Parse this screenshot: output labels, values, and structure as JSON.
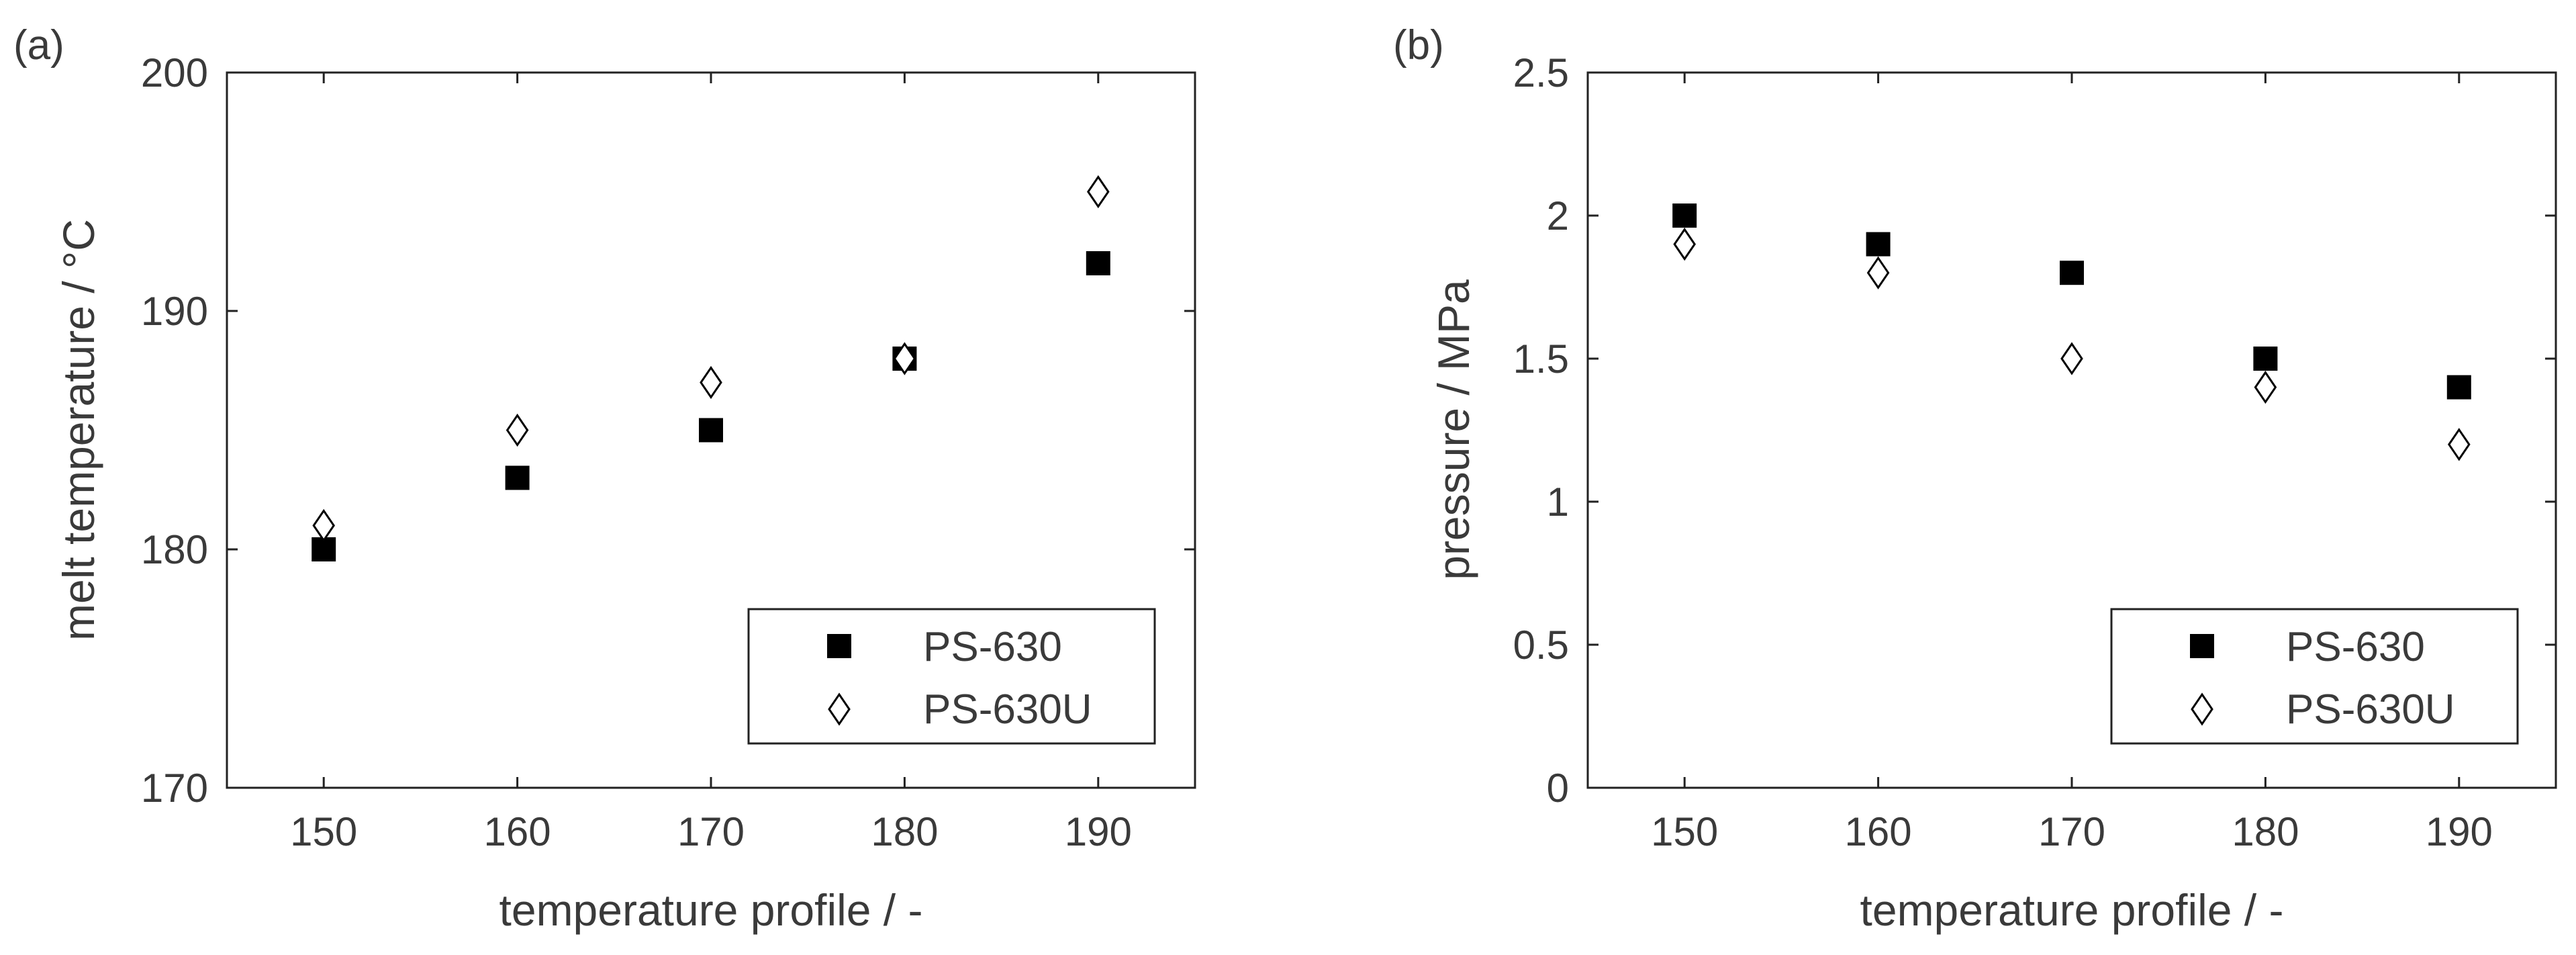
{
  "chart_data": [
    {
      "type": "scatter",
      "panel_label": "(a)",
      "xlabel": "temperature profile / -",
      "ylabel": "melt temperature / °C",
      "xlim": [
        145,
        195
      ],
      "ylim": [
        170,
        200
      ],
      "x_ticks": [
        150,
        160,
        170,
        180,
        190
      ],
      "x_tick_labels": [
        "150",
        "160",
        "170",
        "180",
        "190"
      ],
      "y_ticks": [
        170,
        180,
        190,
        200
      ],
      "y_tick_labels": [
        "170",
        "180",
        "190",
        "200"
      ],
      "grid": false,
      "legend_placement": "bottom-right",
      "series": [
        {
          "name": "PS-630",
          "marker": "filled-square",
          "color": "#000000",
          "x": [
            150,
            160,
            170,
            180,
            190
          ],
          "y": [
            180,
            183,
            185,
            188,
            192
          ]
        },
        {
          "name": "PS-630U",
          "marker": "open-diamond",
          "color": "#000000",
          "x": [
            150,
            160,
            170,
            180,
            190
          ],
          "y": [
            181,
            185,
            187,
            188,
            195
          ]
        }
      ]
    },
    {
      "type": "scatter",
      "panel_label": "(b)",
      "xlabel": "temperature profile / -",
      "ylabel": "pressure / MPa",
      "xlim": [
        145,
        195
      ],
      "ylim": [
        0,
        2.5
      ],
      "x_ticks": [
        150,
        160,
        170,
        180,
        190
      ],
      "x_tick_labels": [
        "150",
        "160",
        "170",
        "180",
        "190"
      ],
      "y_ticks": [
        0,
        0.5,
        1,
        1.5,
        2,
        2.5
      ],
      "y_tick_labels": [
        "0",
        "0.5",
        "1",
        "1.5",
        "2",
        "2.5"
      ],
      "grid": false,
      "legend_placement": "bottom-right",
      "series": [
        {
          "name": "PS-630",
          "marker": "filled-square",
          "color": "#000000",
          "x": [
            150,
            160,
            170,
            180,
            190
          ],
          "y": [
            2.0,
            1.9,
            1.8,
            1.5,
            1.4
          ]
        },
        {
          "name": "PS-630U",
          "marker": "open-diamond",
          "color": "#000000",
          "x": [
            150,
            160,
            170,
            180,
            190
          ],
          "y": [
            1.9,
            1.8,
            1.5,
            1.4,
            1.2
          ]
        }
      ]
    }
  ]
}
